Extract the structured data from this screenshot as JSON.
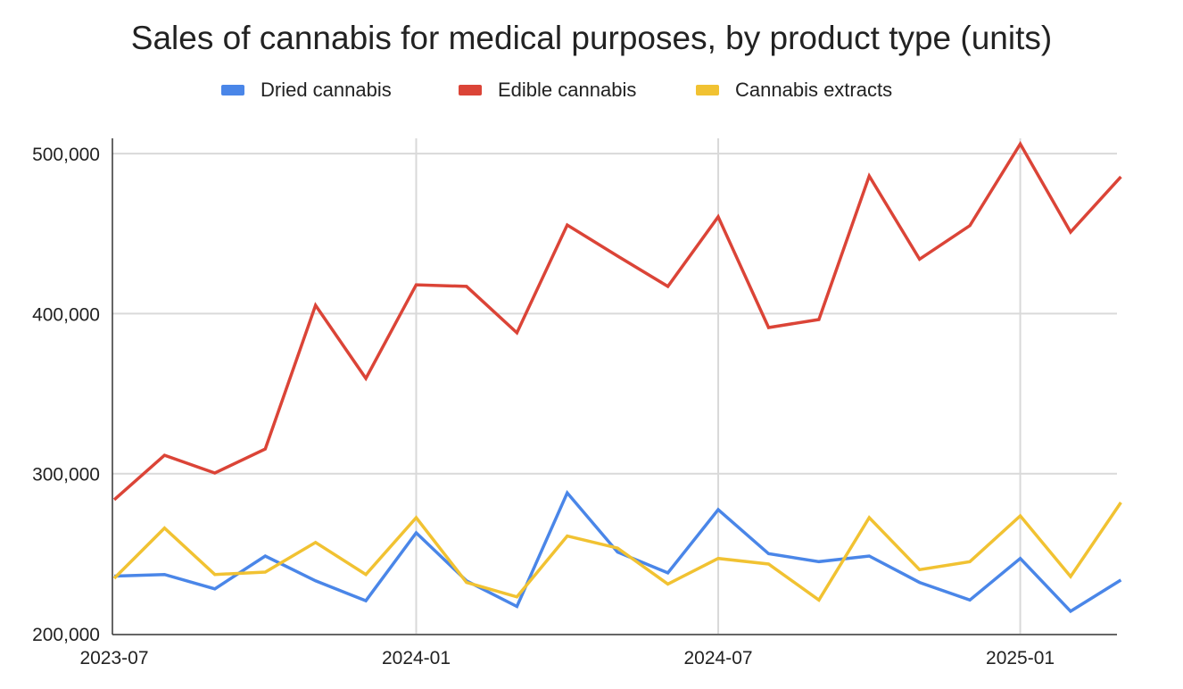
{
  "chart_data": {
    "type": "line",
    "title": "Sales of cannabis for medical purposes, by product type (units)",
    "xlabel": "",
    "ylabel": "",
    "x": [
      "2023-07",
      "2023-08",
      "2023-09",
      "2023-10",
      "2023-11",
      "2023-12",
      "2024-01",
      "2024-02",
      "2024-03",
      "2024-04",
      "2024-05",
      "2024-06",
      "2024-07",
      "2024-08",
      "2024-09",
      "2024-10",
      "2024-11",
      "2024-12",
      "2025-01",
      "2025-02",
      "2025-03"
    ],
    "x_ticks": [
      "2023-07",
      "2024-01",
      "2024-07",
      "2025-01"
    ],
    "y_ticks": [
      "200,000",
      "300,000",
      "400,000",
      "500,000"
    ],
    "ylim": [
      200000,
      510000
    ],
    "grid": true,
    "legend_position": "top",
    "series": [
      {
        "name": "Dried cannabis",
        "color": "#4a86e8",
        "values": [
          236000,
          237000,
          228000,
          248500,
          233000,
          220600,
          263000,
          233000,
          217000,
          288000,
          251000,
          238000,
          277500,
          250000,
          245000,
          248500,
          232000,
          221000,
          247000,
          214000,
          233500
        ]
      },
      {
        "name": "Edible cannabis",
        "color": "#db4437",
        "values": [
          283700,
          311500,
          300400,
          315400,
          405200,
          359500,
          418000,
          417000,
          388000,
          455400,
          436000,
          417000,
          460500,
          391300,
          396300,
          486000,
          434000,
          455000,
          506000,
          451000,
          485500
        ]
      },
      {
        "name": "Cannabis extracts",
        "color": "#f1c232",
        "values": [
          234600,
          266000,
          237000,
          238500,
          257000,
          237000,
          272500,
          232000,
          223000,
          261000,
          253500,
          231000,
          247000,
          243500,
          221000,
          272500,
          240000,
          245000,
          273600,
          235700,
          282000
        ]
      }
    ]
  }
}
